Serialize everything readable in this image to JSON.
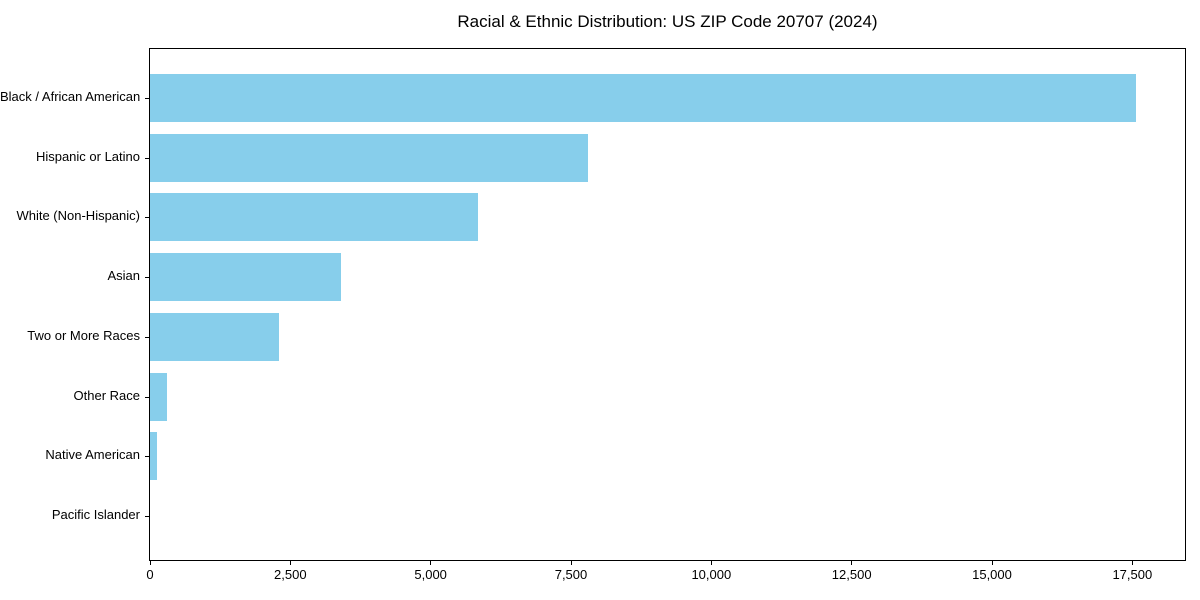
{
  "chart_data": {
    "type": "bar",
    "orientation": "horizontal",
    "title": "Racial & Ethnic Distribution: US ZIP Code 20707 (2024)",
    "categories": [
      "Black / African American",
      "Hispanic or Latino",
      "White (Non-Hispanic)",
      "Asian",
      "Two or More Races",
      "Other Race",
      "Native American",
      "Pacific Islander"
    ],
    "values": [
      17560,
      7800,
      5840,
      3410,
      2290,
      300,
      120,
      0
    ],
    "xlabel": "",
    "ylabel": "",
    "xlim": [
      0,
      18438
    ],
    "xticks": [
      0,
      2500,
      5000,
      7500,
      10000,
      12500,
      15000,
      17500
    ],
    "xtick_labels": [
      "0",
      "2,500",
      "5,000",
      "7,500",
      "10,000",
      "12,500",
      "15,000",
      "17,500"
    ],
    "bar_color": "#87CEEB",
    "background_color": "#ffffff",
    "spine_color": "#000000",
    "grid": false,
    "legend": null
  }
}
